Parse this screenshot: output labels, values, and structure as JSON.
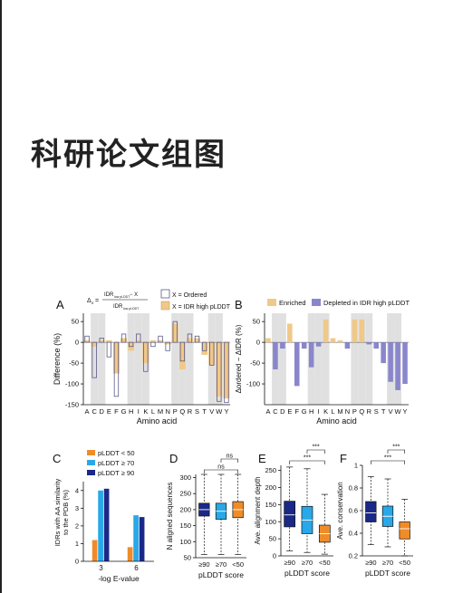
{
  "page": {
    "headline": "科研论文组图"
  },
  "colors": {
    "ordered": "#ffffff",
    "idr_high": "#f0c888",
    "enriched": "#f0c888",
    "depleted": "#8a86cc",
    "shade": "#e0e0e0",
    "lt50": "#f08c28",
    "ge70": "#28a8e8",
    "ge90": "#1a2888"
  },
  "chart_data": [
    {
      "panel": "A",
      "type": "bar",
      "formula": "Δx = (IDR_low pLDDT − X) / IDR_low pLDDT",
      "categories": [
        "A",
        "C",
        "D",
        "E",
        "F",
        "G",
        "H",
        "I",
        "K",
        "L",
        "M",
        "N",
        "P",
        "Q",
        "R",
        "S",
        "T",
        "V",
        "W",
        "Y"
      ],
      "series": [
        {
          "name": "X = Ordered",
          "values": [
            15,
            -85,
            10,
            -35,
            -130,
            20,
            -10,
            20,
            -70,
            -10,
            15,
            -20,
            50,
            -45,
            20,
            15,
            -20,
            -55,
            -142,
            -145
          ]
        },
        {
          "name": "X = IDR high pLDDT",
          "values": [
            5,
            -10,
            5,
            5,
            -75,
            10,
            -20,
            5,
            -50,
            5,
            5,
            -5,
            45,
            -65,
            10,
            10,
            -30,
            -55,
            -130,
            -135
          ]
        }
      ],
      "ylabel": "Difference (%)",
      "xlabel": "Amino acid",
      "yticks": [
        50,
        0,
        -50,
        -100,
        -150
      ],
      "ylim": [
        -150,
        70
      ],
      "shaded": [
        "C",
        "D",
        "H",
        "I",
        "K",
        "P",
        "Q",
        "R",
        "V",
        "W"
      ]
    },
    {
      "panel": "B",
      "type": "bar",
      "categories": [
        "A",
        "C",
        "D",
        "E",
        "F",
        "G",
        "H",
        "I",
        "K",
        "L",
        "M",
        "N",
        "P",
        "Q",
        "R",
        "S",
        "T",
        "V",
        "W",
        "Y"
      ],
      "series": [
        {
          "name": "Enriched",
          "values": [
            10,
            0,
            0,
            45,
            0,
            0,
            0,
            0,
            55,
            10,
            5,
            0,
            55,
            55,
            0,
            0,
            0,
            0,
            0,
            0
          ]
        },
        {
          "name": "Depleted in IDR high pLDDT",
          "values": [
            0,
            -65,
            -15,
            0,
            -105,
            -15,
            -60,
            -10,
            0,
            0,
            0,
            -15,
            0,
            0,
            -5,
            -15,
            -50,
            -95,
            -115,
            -100
          ]
        }
      ],
      "legend": [
        "Enriched",
        "Depleted in IDR high pLDDT"
      ],
      "ylabel": "Δordered − ΔIDR (%)",
      "xlabel": "Amino acid",
      "yticks": [
        50,
        0,
        -50,
        -100
      ],
      "ylim": [
        -150,
        70
      ]
    },
    {
      "panel": "C",
      "type": "bar",
      "categories": [
        "3",
        "6"
      ],
      "series": [
        {
          "name": "pLDDT < 50",
          "values": [
            1.2,
            0.8
          ]
        },
        {
          "name": "pLDDT ≥ 70",
          "values": [
            4.0,
            2.6
          ]
        },
        {
          "name": "pLDDT ≥ 90",
          "values": [
            4.1,
            2.5
          ]
        }
      ],
      "ylabel": "IDRs with AA similarity to the PDB (%)",
      "xlabel": "-log E-value",
      "yticks": [
        0,
        1,
        2,
        3,
        4
      ],
      "ylim": [
        0,
        4.5
      ]
    },
    {
      "panel": "D",
      "type": "box",
      "categories": [
        "≥90",
        "≥70",
        "<50"
      ],
      "boxes": [
        {
          "min": 60,
          "q1": 180,
          "median": 200,
          "q3": 220,
          "max": 310
        },
        {
          "min": 60,
          "q1": 170,
          "median": 195,
          "q3": 220,
          "max": 310
        },
        {
          "min": 60,
          "q1": 175,
          "median": 200,
          "q3": 225,
          "max": 310
        }
      ],
      "ylabel": "N aligned sequences",
      "xlabel": "pLDDT score",
      "yticks": [
        50,
        100,
        150,
        200,
        250,
        300
      ],
      "ylim": [
        50,
        310
      ],
      "significance": [
        "ns",
        "ns"
      ]
    },
    {
      "panel": "E",
      "type": "box",
      "categories": [
        "≥90",
        "≥70",
        "<50"
      ],
      "boxes": [
        {
          "min": 15,
          "q1": 85,
          "median": 120,
          "q3": 160,
          "max": 260
        },
        {
          "min": 10,
          "q1": 65,
          "median": 105,
          "q3": 145,
          "max": 255
        },
        {
          "min": 5,
          "q1": 40,
          "median": 65,
          "q3": 90,
          "max": 180
        }
      ],
      "ylabel": "Ave. alignment depth",
      "xlabel": "pLDDT score",
      "yticks": [
        0,
        50,
        100,
        150,
        200,
        250
      ],
      "ylim": [
        0,
        265
      ],
      "significance": [
        "***",
        "***"
      ]
    },
    {
      "panel": "F",
      "type": "box",
      "categories": [
        "≥90",
        "≥70",
        "<50"
      ],
      "boxes": [
        {
          "min": 0.3,
          "q1": 0.5,
          "median": 0.58,
          "q3": 0.68,
          "max": 0.9
        },
        {
          "min": 0.28,
          "q1": 0.46,
          "median": 0.55,
          "q3": 0.64,
          "max": 0.88
        },
        {
          "min": 0.2,
          "q1": 0.35,
          "median": 0.44,
          "q3": 0.5,
          "max": 0.7
        }
      ],
      "ylabel": "Ave. conservation",
      "xlabel": "pLDDT score",
      "yticks": [
        0.2,
        0.4,
        0.6,
        0.8,
        1
      ],
      "ylim": [
        0.2,
        1.0
      ],
      "significance": [
        "***",
        "***"
      ]
    }
  ]
}
